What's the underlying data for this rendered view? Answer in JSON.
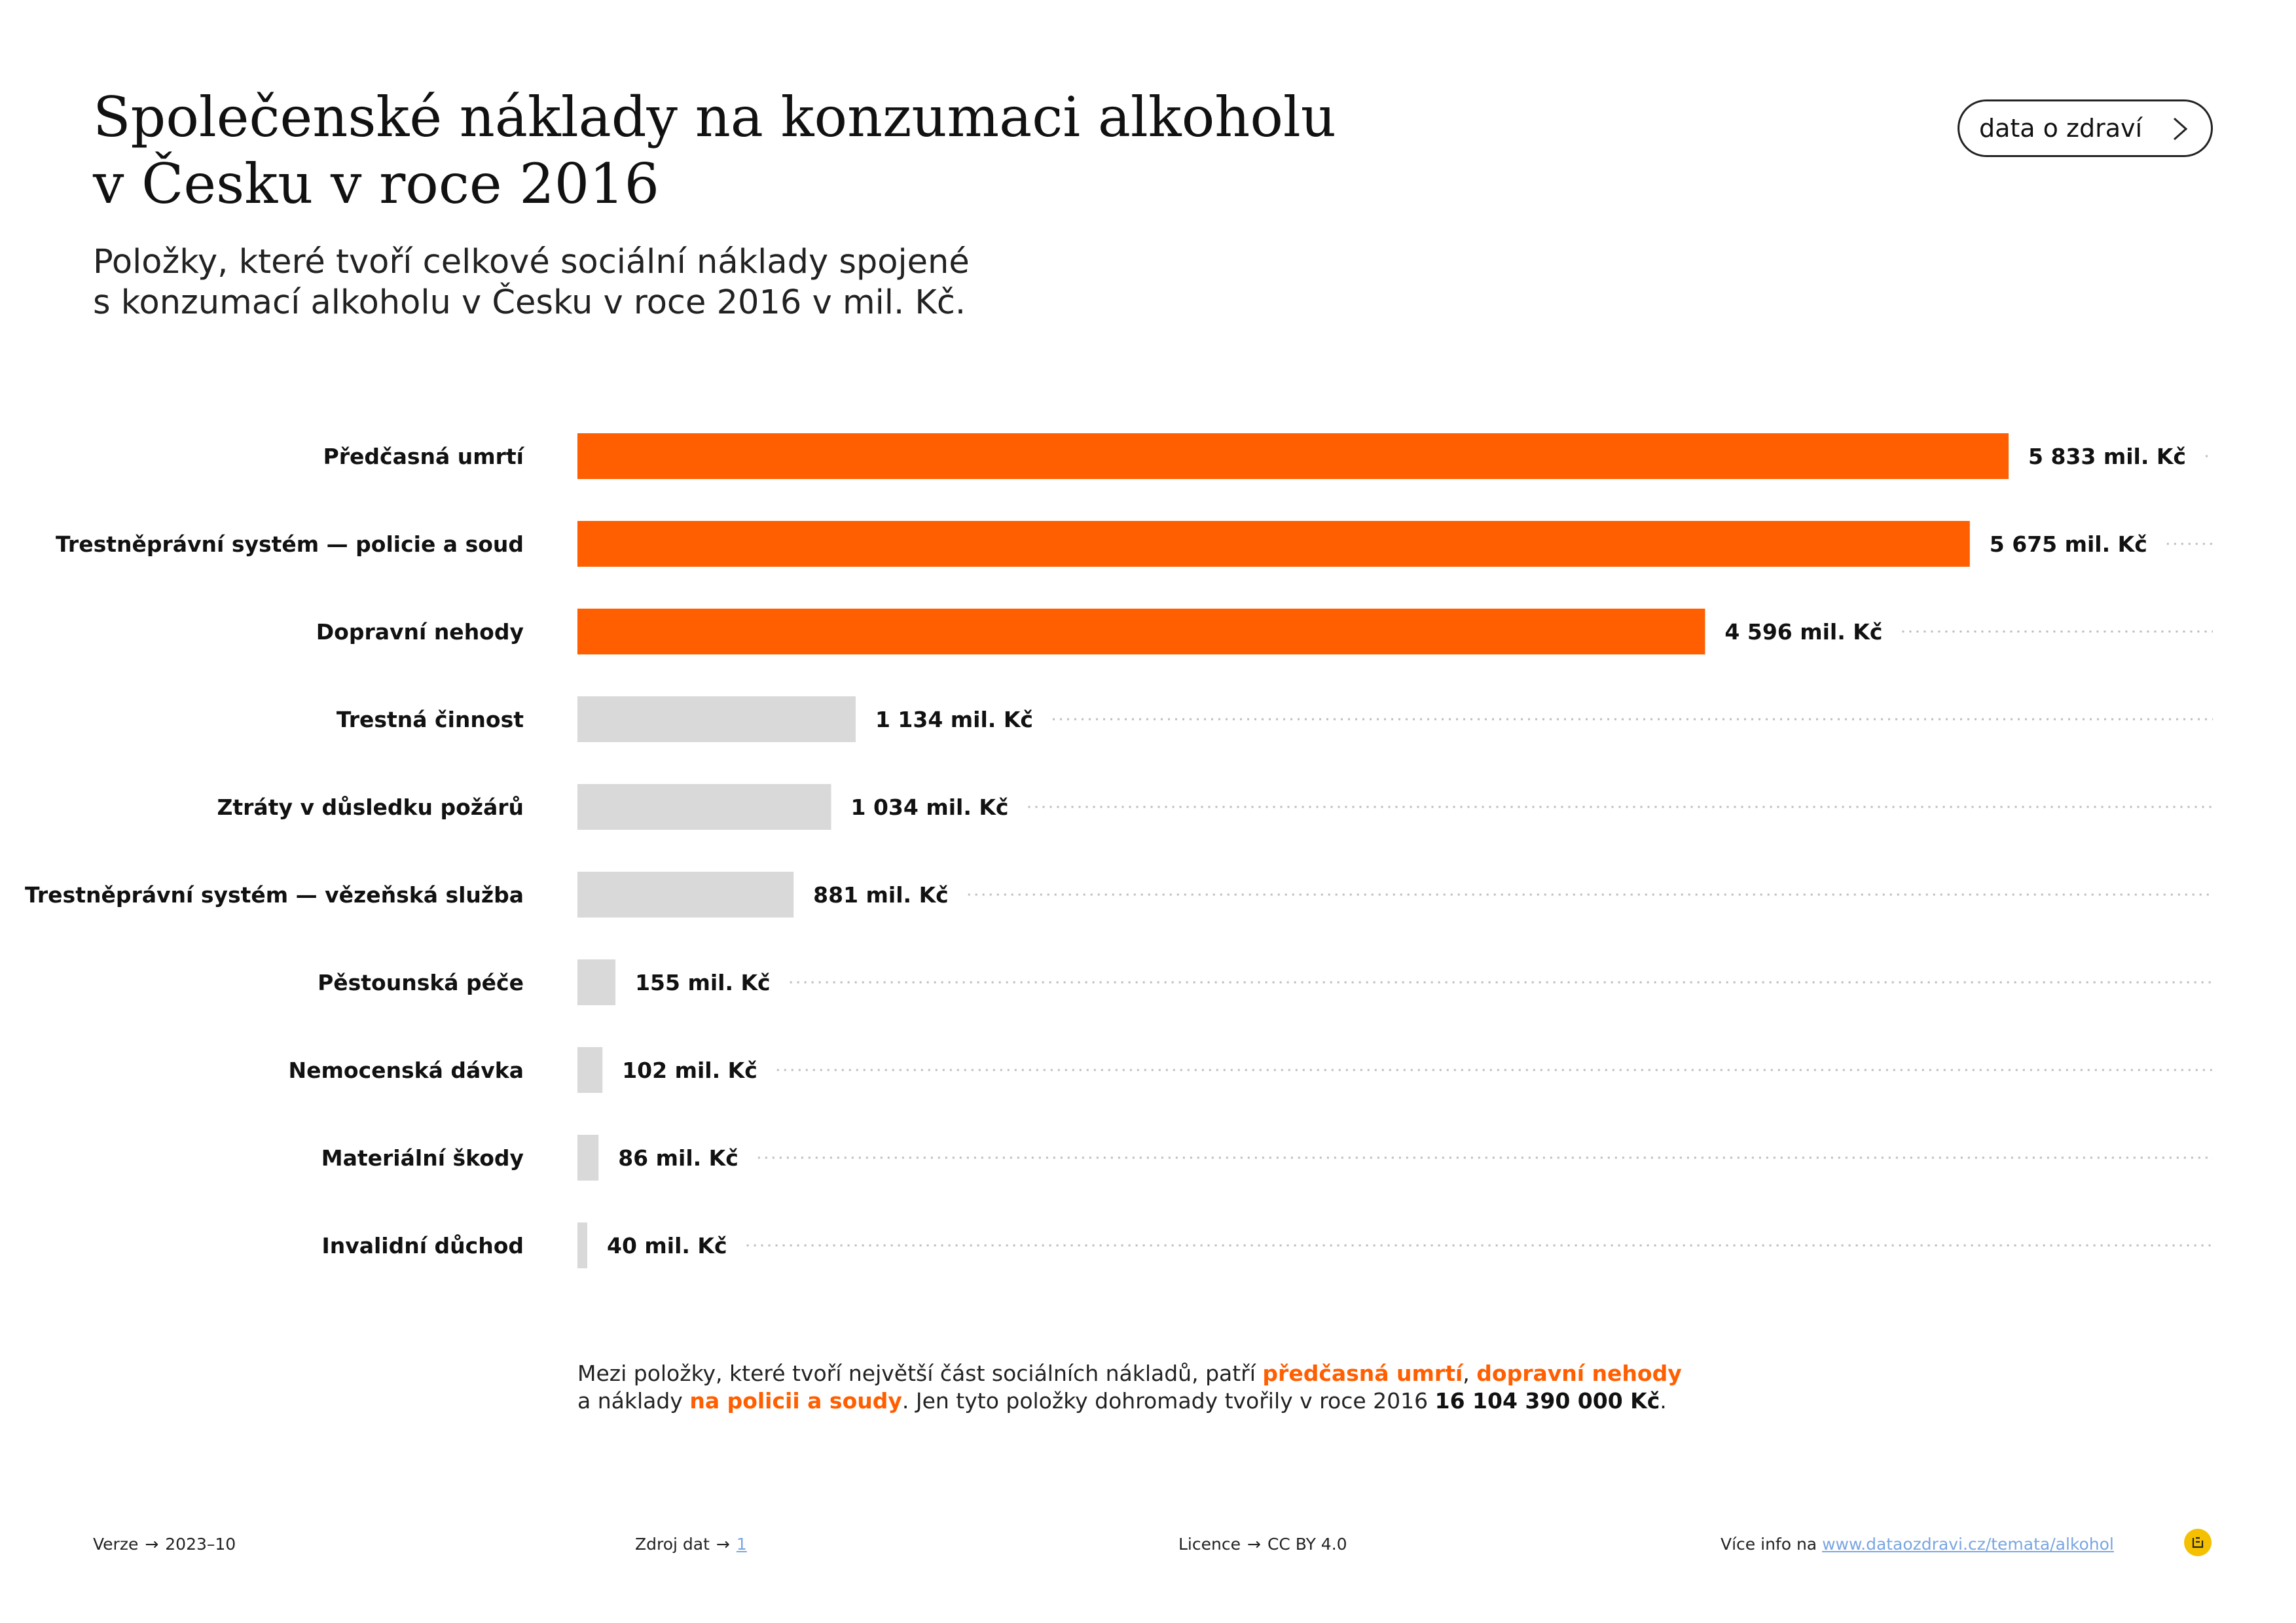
{
  "header": {
    "title_line1": "Společenské náklady na konzumaci alkoholu",
    "title_line2": "v Česku v roce 2016",
    "subtitle_line1": "Položky, které tvoří celkové sociální náklady spojené",
    "subtitle_line2": "s konzumací alkoholu v Česku v roce 2016 v mil. Kč.",
    "button_label": "data o zdraví"
  },
  "colors": {
    "highlight": "#ff5f00",
    "muted": "#d9d9d9",
    "dots": "#bdbdbd"
  },
  "chart_data": {
    "type": "bar",
    "orientation": "horizontal",
    "unit": "mil. Kč",
    "categories": [
      "Předčasná umrtí",
      "Trestněprávní systém — policie a soud",
      "Dopravní nehody",
      "Trestná činnost",
      "Ztráty v důsledku požárů",
      "Trestněprávní systém — vězeňská služba",
      "Pěstounská péče",
      "Nemocenská dávka",
      "Materiální škody",
      "Invalidní důchod"
    ],
    "values": [
      5833,
      5675,
      4596,
      1134,
      1034,
      881,
      155,
      102,
      86,
      40
    ],
    "value_labels": [
      "5 833 mil. Kč",
      "5 675 mil. Kč",
      "4 596 mil. Kč",
      "1 134 mil. Kč",
      "1 034 mil. Kč",
      "881 mil. Kč",
      "155 mil. Kč",
      "102 mil. Kč",
      "86 mil. Kč",
      "40 mil. Kč"
    ],
    "highlighted": [
      true,
      true,
      true,
      false,
      false,
      false,
      false,
      false,
      false,
      false
    ],
    "xlim": [
      0,
      5833
    ]
  },
  "note": {
    "l1_a": "Mezi položky, které tvoří největší část sociálních nákladů, patří ",
    "l1_hl1": "předčasná umrtí",
    "l1_b": ", ",
    "l1_hl2": "dopravní nehody",
    "l2_a": "a náklady ",
    "l2_hl": "na policii a soudy",
    "l2_b": ". Jen tyto položky dohromady tvořily v roce 2016 ",
    "l2_strong": "16 104 390 000 Kč",
    "l2_c": "."
  },
  "footer": {
    "version_label": "Verze",
    "version_value": "2023–10",
    "source_label": "Zdroj dat",
    "source_value": "1",
    "license_label": "Licence",
    "license_value": "CC BY 4.0",
    "info_label": "Více info na",
    "info_link": "www.dataozdravi.cz/temata/alkohol",
    "arrow": "→"
  }
}
